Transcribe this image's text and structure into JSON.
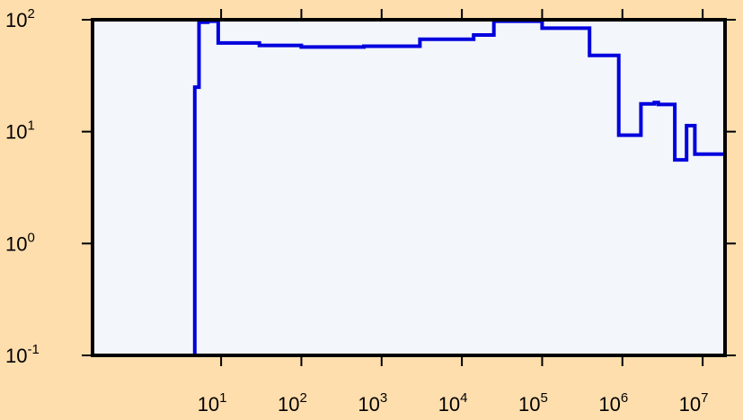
{
  "chart_data": {
    "type": "line",
    "style": "step",
    "title": "",
    "xlabel": "",
    "ylabel": "",
    "x_scale": "log",
    "y_scale": "log",
    "xlim": [
      0.25,
      19000000.0
    ],
    "ylim": [
      0.1,
      100
    ],
    "grid": false,
    "legend": "none",
    "plot_background": "#f3f6fb",
    "figure_background": "#ffdead",
    "line_color": "#0000dd",
    "x_tick_labels": [
      {
        "value": 10,
        "base": "10",
        "exp": "1"
      },
      {
        "value": 100,
        "base": "10",
        "exp": "2"
      },
      {
        "value": 1000,
        "base": "10",
        "exp": "3"
      },
      {
        "value": 10000,
        "base": "10",
        "exp": "4"
      },
      {
        "value": 100000,
        "base": "10",
        "exp": "5"
      },
      {
        "value": 1000000,
        "base": "10",
        "exp": "6"
      },
      {
        "value": 10000000,
        "base": "10",
        "exp": "7"
      }
    ],
    "y_tick_labels": [
      {
        "value": 100,
        "base": "10",
        "exp": "2"
      },
      {
        "value": 10,
        "base": "10",
        "exp": "1"
      },
      {
        "value": 1,
        "base": "10",
        "exp": "0"
      },
      {
        "value": 0.1,
        "base": "10",
        "exp": "-1"
      }
    ],
    "series": [
      {
        "steps": [
          {
            "x0": 4.7,
            "x1": 5.3,
            "y": 25
          },
          {
            "x0": 5.3,
            "x1": 6.8,
            "y": 95
          },
          {
            "x0": 6.8,
            "x1": 9.2,
            "y": 97
          },
          {
            "x0": 9.2,
            "x1": 30,
            "y": 62
          },
          {
            "x0": 30,
            "x1": 100,
            "y": 59
          },
          {
            "x0": 100,
            "x1": 600,
            "y": 57
          },
          {
            "x0": 600,
            "x1": 3000,
            "y": 58
          },
          {
            "x0": 3000,
            "x1": 14000,
            "y": 67
          },
          {
            "x0": 14000,
            "x1": 25000,
            "y": 73
          },
          {
            "x0": 25000,
            "x1": 100000,
            "y": 97
          },
          {
            "x0": 100000,
            "x1": 390000,
            "y": 84
          },
          {
            "x0": 390000,
            "x1": 900000,
            "y": 48
          },
          {
            "x0": 900000,
            "x1": 1700000,
            "y": 9.3
          },
          {
            "x0": 1700000,
            "x1": 2500000,
            "y": 17.7
          },
          {
            "x0": 2500000,
            "x1": 2800000,
            "y": 18.2
          },
          {
            "x0": 2800000,
            "x1": 4500000,
            "y": 17.5
          },
          {
            "x0": 4500000,
            "x1": 6300000,
            "y": 5.6
          },
          {
            "x0": 6300000,
            "x1": 8000000,
            "y": 11.3
          },
          {
            "x0": 8000000,
            "x1": 19000000,
            "y": 6.3
          }
        ]
      }
    ]
  }
}
